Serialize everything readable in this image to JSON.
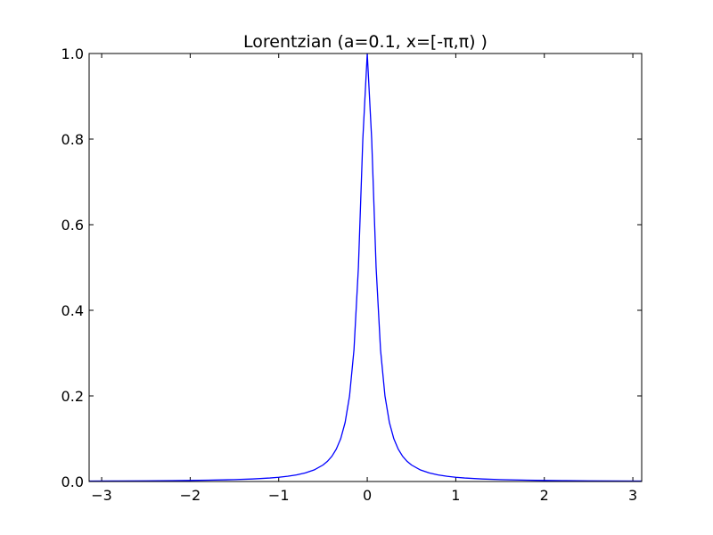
{
  "chart_data": {
    "type": "line",
    "title": "Lorentzian (a=0.1, x=[-π,π) )",
    "xlabel": "",
    "ylabel": "",
    "xlim": [
      -3.1416,
      3.1
    ],
    "ylim": [
      0.0,
      1.0
    ],
    "x_ticks": [
      -3,
      -2,
      -1,
      0,
      1,
      2,
      3
    ],
    "x_tick_labels": [
      "−3",
      "−2",
      "−1",
      "0",
      "1",
      "2",
      "3"
    ],
    "y_ticks": [
      0.0,
      0.2,
      0.4,
      0.6,
      0.8,
      1.0
    ],
    "y_tick_labels": [
      "0.0",
      "0.2",
      "0.4",
      "0.6",
      "0.8",
      "1.0"
    ],
    "grid": false,
    "series": [
      {
        "color": "#0000ff",
        "x": [
          -3.1416,
          -2.8,
          -2.5,
          -2.2,
          -2.0,
          -1.8,
          -1.5,
          -1.3,
          -1.1,
          -1.0,
          -0.9,
          -0.8,
          -0.7,
          -0.6,
          -0.5,
          -0.45,
          -0.4,
          -0.35,
          -0.3,
          -0.25,
          -0.2,
          -0.15,
          -0.1,
          -0.05,
          0.0,
          0.05,
          0.1,
          0.15,
          0.2,
          0.25,
          0.3,
          0.35,
          0.4,
          0.45,
          0.5,
          0.6,
          0.7,
          0.8,
          0.9,
          1.0,
          1.1,
          1.3,
          1.5,
          1.8,
          2.0,
          2.2,
          2.5,
          2.8,
          3.1
        ],
        "y": [
          0.001,
          0.0013,
          0.0016,
          0.0021,
          0.0025,
          0.0031,
          0.0044,
          0.0059,
          0.0082,
          0.0099,
          0.0122,
          0.0154,
          0.02,
          0.027,
          0.0385,
          0.0471,
          0.0588,
          0.0755,
          0.1,
          0.1379,
          0.2,
          0.3077,
          0.5,
          0.8,
          1.0,
          0.8,
          0.5,
          0.3077,
          0.2,
          0.1379,
          0.1,
          0.0755,
          0.0588,
          0.0471,
          0.0385,
          0.027,
          0.02,
          0.0154,
          0.0122,
          0.0099,
          0.0082,
          0.0059,
          0.0044,
          0.0031,
          0.0025,
          0.0021,
          0.0016,
          0.0013,
          0.001
        ]
      }
    ]
  }
}
